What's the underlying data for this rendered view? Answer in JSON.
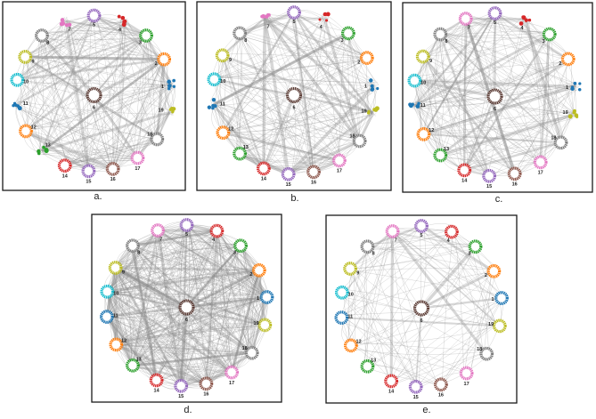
{
  "colors": {
    "edge": "#8c8c8c",
    "frame": "#1a1a1a",
    "node_palette": {
      "1": "#1f77b4",
      "2": "#ff7f0e",
      "3": "#2ca02c",
      "4": "#d62728",
      "5": "#9467bd",
      "6": "#5a3a33",
      "7": "#e377c2",
      "8": "#7f7f7f",
      "9": "#bcbd22",
      "10": "#17becf",
      "11": "#1f77b4",
      "12": "#ff7f0e",
      "13": "#2ca02c",
      "14": "#d62728",
      "15": "#9467bd",
      "16": "#8c564b",
      "17": "#e377c2",
      "18": "#7f7f7f",
      "19": "#bcbd22"
    }
  },
  "panels": [
    {
      "id": "a",
      "label": "a.",
      "edge_density": "very-dense"
    },
    {
      "id": "b",
      "label": "b.",
      "edge_density": "dense"
    },
    {
      "id": "c",
      "label": "c.",
      "edge_density": "dense"
    },
    {
      "id": "d",
      "label": "d.",
      "edge_density": "saturated"
    },
    {
      "id": "e",
      "label": "e.",
      "edge_density": "sparse"
    }
  ],
  "node_labels": [
    "1",
    "2",
    "3",
    "4",
    "5",
    "6",
    "7",
    "8",
    "9",
    "10",
    "11",
    "12",
    "13",
    "14",
    "15",
    "16",
    "17",
    "18",
    "19"
  ],
  "center_node": "6"
}
